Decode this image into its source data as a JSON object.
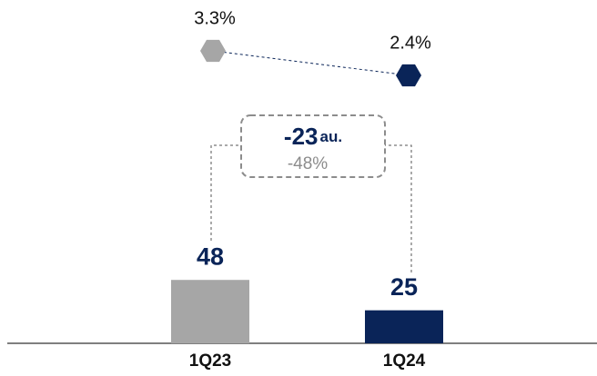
{
  "chart_data": {
    "type": "bar",
    "categories": [
      "1Q23",
      "1Q24"
    ],
    "values": [
      48,
      25
    ],
    "colors": [
      "#a6a6a6",
      "#0a2458"
    ],
    "ylim": [
      0,
      260
    ],
    "line": {
      "type": "line",
      "values": [
        3.3,
        2.4
      ],
      "value_labels": [
        "3.3%",
        "2.4%"
      ],
      "colors": [
        "#a6a6a6",
        "#0a2458"
      ],
      "y2lim": [
        0,
        5
      ]
    },
    "annotation": {
      "change": "-23",
      "unit": "au.",
      "percent": "-48%"
    }
  }
}
